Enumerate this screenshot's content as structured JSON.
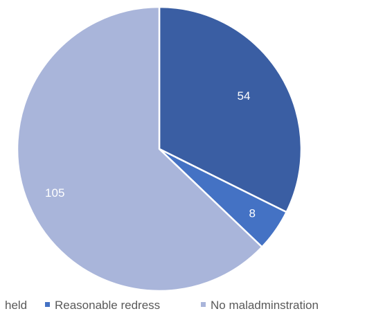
{
  "chart_data": {
    "type": "pie",
    "title": "",
    "categories": [
      "Upheld",
      "Reasonable redress",
      "No maladminstration"
    ],
    "values": [
      54,
      8,
      105
    ],
    "colors": [
      "#3a5ea3",
      "#4472c4",
      "#a9b5da"
    ],
    "legend": "bottom",
    "legend_labels": [
      "held",
      "Reasonable redress",
      "No maladminstration"
    ]
  }
}
